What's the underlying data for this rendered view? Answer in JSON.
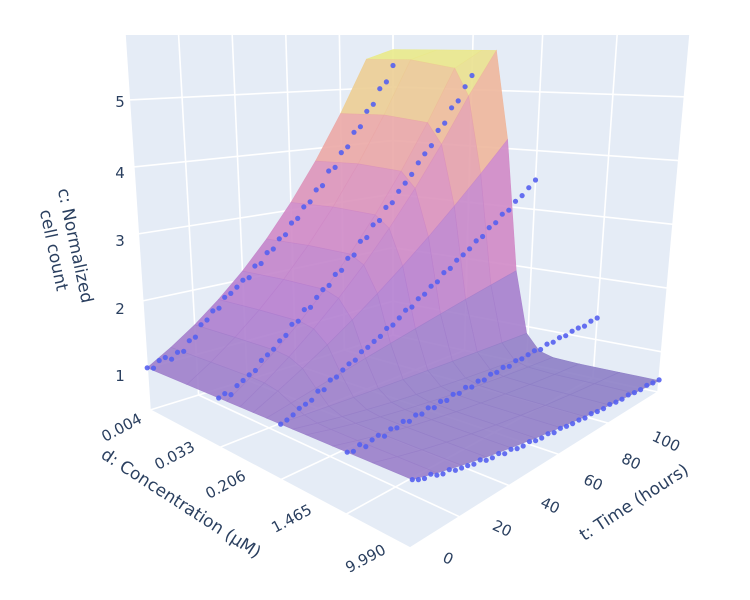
{
  "chart_data": {
    "type": "surface3d+scatter3d",
    "background": "#e5ecf6",
    "grid_color": "#ffffff",
    "grid": true,
    "axes": {
      "x": {
        "title": "d: Concentration (μM)",
        "scale": "log",
        "range": [
          0.004,
          9.99
        ],
        "ticks": [
          "0.004",
          "0.033",
          "0.206",
          "1.465",
          "9.990"
        ],
        "tick_values": [
          0.004,
          0.033,
          0.206,
          1.465,
          9.99
        ]
      },
      "y": {
        "title": "t: Time (hours)",
        "range": [
          0,
          100
        ],
        "ticks": [
          "0",
          "20",
          "40",
          "60",
          "80",
          "100"
        ],
        "tick_values": [
          0,
          20,
          40,
          60,
          80,
          100
        ]
      },
      "z": {
        "title_lines": [
          "c: Normalized",
          "cell count"
        ],
        "range": [
          0.37,
          5.97
        ],
        "ticks": [
          "1",
          "2",
          "3",
          "4",
          "5"
        ],
        "tick_values": [
          1,
          2,
          3,
          4,
          5
        ]
      }
    },
    "colorscale": [
      "#8b80c6",
      "#b47fd0",
      "#d68cc4",
      "#efae9f",
      "#e9ef8a"
    ],
    "surface": {
      "d": [
        0.004,
        0.0129,
        0.0418,
        0.0618,
        0.0914,
        0.135,
        0.198,
        0.293,
        0.436,
        0.955,
        3.09,
        9.99
      ],
      "t": [
        0,
        10,
        20,
        30,
        40,
        50,
        60,
        70,
        80,
        90,
        100
      ],
      "c": [
        [
          1,
          1,
          1,
          1,
          1,
          1,
          1,
          1,
          1,
          1,
          1,
          1
        ],
        [
          1.209,
          1.208,
          1.205,
          1.193,
          1.153,
          1.067,
          0.988,
          0.955,
          0.945,
          0.942,
          0.942,
          0.942
        ],
        [
          1.462,
          1.461,
          1.452,
          1.423,
          1.33,
          1.139,
          0.975,
          0.911,
          0.893,
          0.887,
          0.887,
          0.887
        ],
        [
          1.768,
          1.766,
          1.75,
          1.697,
          1.533,
          1.215,
          0.963,
          0.87,
          0.843,
          0.835,
          0.835,
          0.835
        ],
        [
          2.138,
          2.135,
          2.108,
          2.024,
          1.768,
          1.297,
          0.951,
          0.83,
          0.797,
          0.787,
          0.787,
          0.787
        ],
        [
          2.586,
          2.581,
          2.541,
          2.415,
          2.039,
          1.384,
          0.939,
          0.793,
          0.753,
          0.741,
          0.741,
          0.741
        ],
        [
          3.127,
          3.12,
          3.062,
          2.881,
          2.351,
          1.477,
          0.928,
          0.757,
          0.711,
          0.698,
          0.698,
          0.698
        ],
        [
          3.781,
          3.772,
          3.69,
          3.437,
          2.711,
          1.576,
          0.916,
          0.722,
          0.672,
          0.657,
          0.657,
          0.657
        ],
        [
          4.572,
          4.559,
          4.446,
          4.1,
          3.126,
          1.682,
          0.905,
          0.689,
          0.635,
          0.619,
          0.619,
          0.619
        ],
        [
          5.529,
          5.511,
          5.358,
          4.891,
          3.605,
          1.795,
          0.894,
          0.658,
          0.6,
          0.583,
          0.583,
          0.583
        ],
        [
          5.7,
          5.7,
          5.7,
          5.7,
          4.157,
          1.916,
          0.882,
          0.628,
          0.567,
          0.549,
          0.549,
          0.549
        ]
      ]
    },
    "scatter": {
      "marker_color": "#5560f0",
      "t": [
        0,
        2.5,
        5,
        7.5,
        10,
        12.5,
        15,
        17.5,
        20,
        22.5,
        25,
        27.5,
        30,
        32.5,
        35,
        37.5,
        40,
        42.5,
        45,
        47.5,
        50,
        52.5,
        55,
        57.5,
        60,
        62.5,
        65,
        67.5,
        70,
        72.5,
        75,
        77.5,
        80,
        82.5,
        85,
        87.5,
        90,
        92.5,
        95,
        97.5,
        100
      ],
      "series": [
        {
          "d": 0.004,
          "c": [
            1.0,
            0.97,
            1.06,
            1.08,
            1.03,
            1.11,
            1.1,
            1.24,
            1.27,
            1.44,
            1.49,
            1.61,
            1.63,
            1.78,
            1.82,
            1.9,
            1.99,
            2.01,
            2.18,
            2.2,
            2.36,
            2.4,
            2.55,
            2.6,
            2.78,
            2.84,
            3.02,
            3.09,
            3.28,
            3.34,
            3.58,
            3.63,
            3.88,
            3.97,
            4.22,
            4.31,
            4.58,
            4.7,
            4.98,
            5.1,
            5.4
          ]
        },
        {
          "d": 0.033,
          "c": [
            1.0,
            1.03,
            0.99,
            1.08,
            1.12,
            1.17,
            1.2,
            1.31,
            1.36,
            1.41,
            1.5,
            1.55,
            1.68,
            1.7,
            1.84,
            1.85,
            1.97,
            2.06,
            2.1,
            2.24,
            2.28,
            2.44,
            2.47,
            2.66,
            2.7,
            2.88,
            2.93,
            3.12,
            3.18,
            3.35,
            3.47,
            3.6,
            3.78,
            3.92,
            4.05,
            4.3,
            4.42,
            4.68,
            4.8,
            5.05,
            5.25
          ]
        },
        {
          "d": 0.206,
          "c": [
            1.0,
            1.02,
            1.05,
            1.1,
            1.12,
            1.14,
            1.22,
            1.21,
            1.3,
            1.31,
            1.37,
            1.42,
            1.44,
            1.52,
            1.55,
            1.6,
            1.64,
            1.72,
            1.74,
            1.81,
            1.89,
            1.91,
            2.0,
            2.04,
            2.13,
            2.17,
            2.28,
            2.32,
            2.42,
            2.48,
            2.55,
            2.65,
            2.7,
            2.82,
            2.88,
            3.0,
            3.05,
            3.18,
            3.26,
            3.38,
            3.5
          ]
        },
        {
          "d": 1.465,
          "c": [
            1.0,
            0.98,
            1.02,
            0.97,
            1.01,
            1.03,
            0.99,
            1.04,
            1.02,
            1.06,
            1.03,
            1.07,
            1.05,
            1.09,
            1.06,
            1.1,
            1.08,
            1.12,
            1.1,
            1.14,
            1.11,
            1.15,
            1.13,
            1.17,
            1.16,
            1.19,
            1.17,
            1.21,
            1.2,
            1.22,
            1.24,
            1.22,
            1.26,
            1.25,
            1.28,
            1.27,
            1.3,
            1.31,
            1.3,
            1.34,
            1.35
          ]
        },
        {
          "d": 9.99,
          "c": [
            1.0,
            0.97,
            0.95,
            0.96,
            0.92,
            0.9,
            0.91,
            0.87,
            0.86,
            0.85,
            0.83,
            0.84,
            0.8,
            0.79,
            0.8,
            0.76,
            0.77,
            0.74,
            0.73,
            0.74,
            0.71,
            0.7,
            0.71,
            0.68,
            0.69,
            0.67,
            0.66,
            0.66,
            0.64,
            0.65,
            0.63,
            0.62,
            0.63,
            0.61,
            0.6,
            0.61,
            0.59,
            0.58,
            0.59,
            0.57,
            0.56
          ]
        }
      ]
    }
  }
}
